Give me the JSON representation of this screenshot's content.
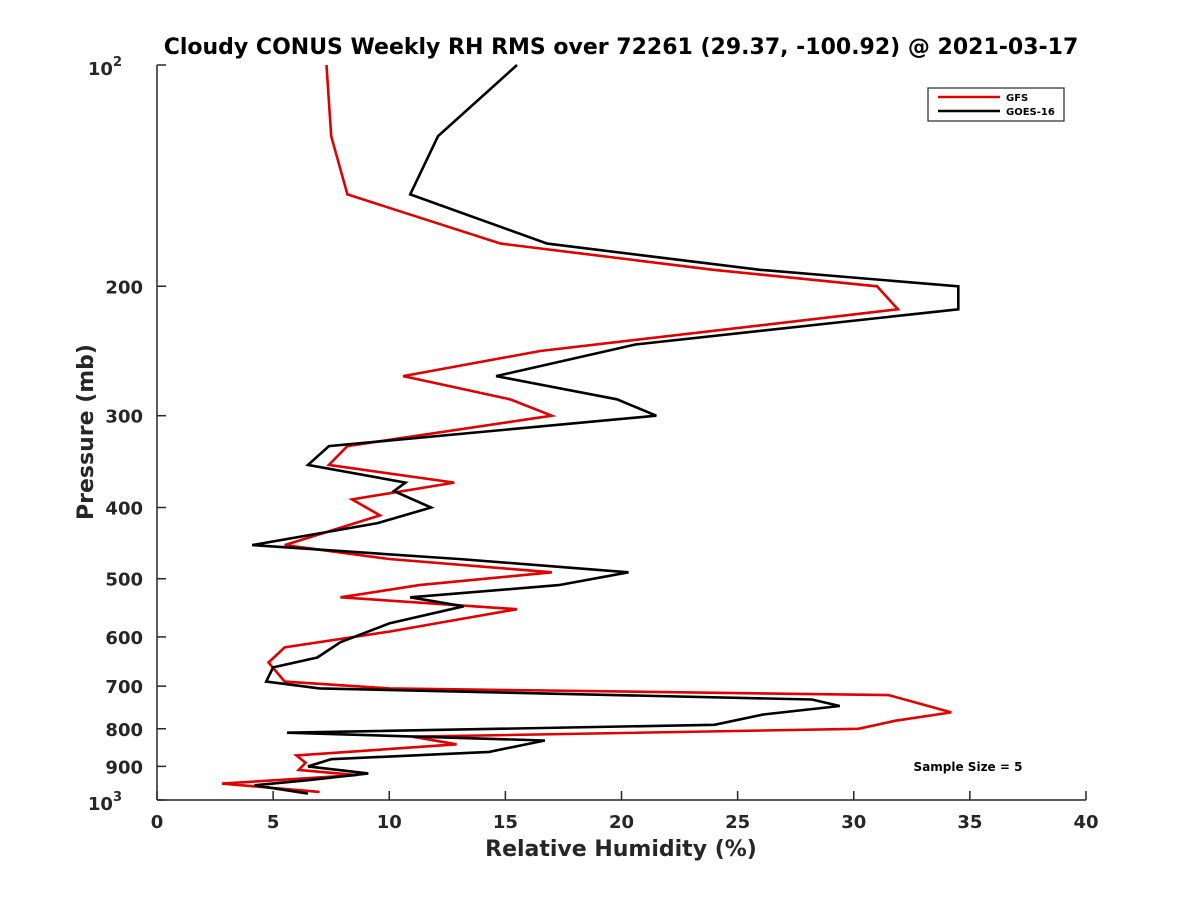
{
  "chart_data": {
    "type": "line",
    "title": "Cloudy CONUS Weekly RH RMS over 72261 (29.37, -100.92) @ 2021-03-17",
    "xlabel": "Relative Humidity (%)",
    "ylabel": "Pressure (mb)",
    "xlim": [
      0,
      40
    ],
    "ylim": [
      100,
      1000
    ],
    "yscale": "log",
    "yreversed": true,
    "x_ticks": [
      0,
      5,
      10,
      15,
      20,
      25,
      30,
      35,
      40
    ],
    "x_tick_labels": [
      "0",
      "5",
      "10",
      "15",
      "20",
      "25",
      "30",
      "35",
      "40"
    ],
    "y_ticks": [
      200,
      300,
      400,
      500,
      600,
      700,
      800,
      900
    ],
    "y_tick_labels": [
      "200",
      "300",
      "400",
      "500",
      "600",
      "700",
      "800",
      "900"
    ],
    "y_edge_labels": {
      "top": {
        "base": "10",
        "exp": "2"
      },
      "bottom": {
        "base": "10",
        "exp": "3"
      }
    },
    "legend_position": "top-right",
    "series": [
      {
        "name": "GFS",
        "color": "#e00000",
        "points": [
          [
            7.3,
            100
          ],
          [
            7.5,
            125
          ],
          [
            8.2,
            150
          ],
          [
            14.8,
            175
          ],
          [
            24.0,
            190
          ],
          [
            31.0,
            200
          ],
          [
            31.9,
            215
          ],
          [
            16.5,
            245
          ],
          [
            10.6,
            265
          ],
          [
            15.2,
            285
          ],
          [
            17.0,
            300
          ],
          [
            8.2,
            330
          ],
          [
            7.4,
            350
          ],
          [
            12.8,
            370
          ],
          [
            8.4,
            390
          ],
          [
            9.6,
            410
          ],
          [
            5.5,
            450
          ],
          [
            10.0,
            470
          ],
          [
            17.0,
            490
          ],
          [
            11.3,
            510
          ],
          [
            7.9,
            530
          ],
          [
            15.5,
            550
          ],
          [
            10.0,
            590
          ],
          [
            5.5,
            620
          ],
          [
            4.8,
            650
          ],
          [
            5.5,
            690
          ],
          [
            10.0,
            705
          ],
          [
            31.5,
            720
          ],
          [
            34.2,
            760
          ],
          [
            31.8,
            780
          ],
          [
            30.2,
            800
          ],
          [
            11.0,
            820
          ],
          [
            12.9,
            840
          ],
          [
            6.0,
            870
          ],
          [
            6.4,
            890
          ],
          [
            6.1,
            910
          ],
          [
            8.6,
            925
          ],
          [
            2.8,
            950
          ],
          [
            7.0,
            975
          ]
        ]
      },
      {
        "name": "GOES-16",
        "color": "#000000",
        "points": [
          [
            15.5,
            100
          ],
          [
            12.1,
            125
          ],
          [
            10.9,
            150
          ],
          [
            16.8,
            175
          ],
          [
            26.0,
            190
          ],
          [
            34.5,
            200
          ],
          [
            34.5,
            215
          ],
          [
            20.6,
            240
          ],
          [
            14.6,
            265
          ],
          [
            19.8,
            285
          ],
          [
            21.5,
            300
          ],
          [
            7.4,
            330
          ],
          [
            6.5,
            350
          ],
          [
            10.7,
            370
          ],
          [
            10.2,
            380
          ],
          [
            11.8,
            400
          ],
          [
            9.5,
            420
          ],
          [
            4.1,
            450
          ],
          [
            13.0,
            470
          ],
          [
            20.3,
            490
          ],
          [
            17.3,
            510
          ],
          [
            10.9,
            530
          ],
          [
            13.2,
            545
          ],
          [
            10.0,
            575
          ],
          [
            7.9,
            610
          ],
          [
            6.9,
            640
          ],
          [
            5.0,
            660
          ],
          [
            4.7,
            690
          ],
          [
            7.0,
            705
          ],
          [
            28.2,
            730
          ],
          [
            29.4,
            745
          ],
          [
            26.1,
            765
          ],
          [
            24.0,
            790
          ],
          [
            5.6,
            810
          ],
          [
            16.7,
            830
          ],
          [
            14.3,
            860
          ],
          [
            7.5,
            880
          ],
          [
            6.5,
            900
          ],
          [
            9.1,
            920
          ],
          [
            6.5,
            940
          ],
          [
            4.2,
            955
          ],
          [
            6.5,
            980
          ]
        ]
      }
    ],
    "annotation": "Sample Size = 5"
  }
}
